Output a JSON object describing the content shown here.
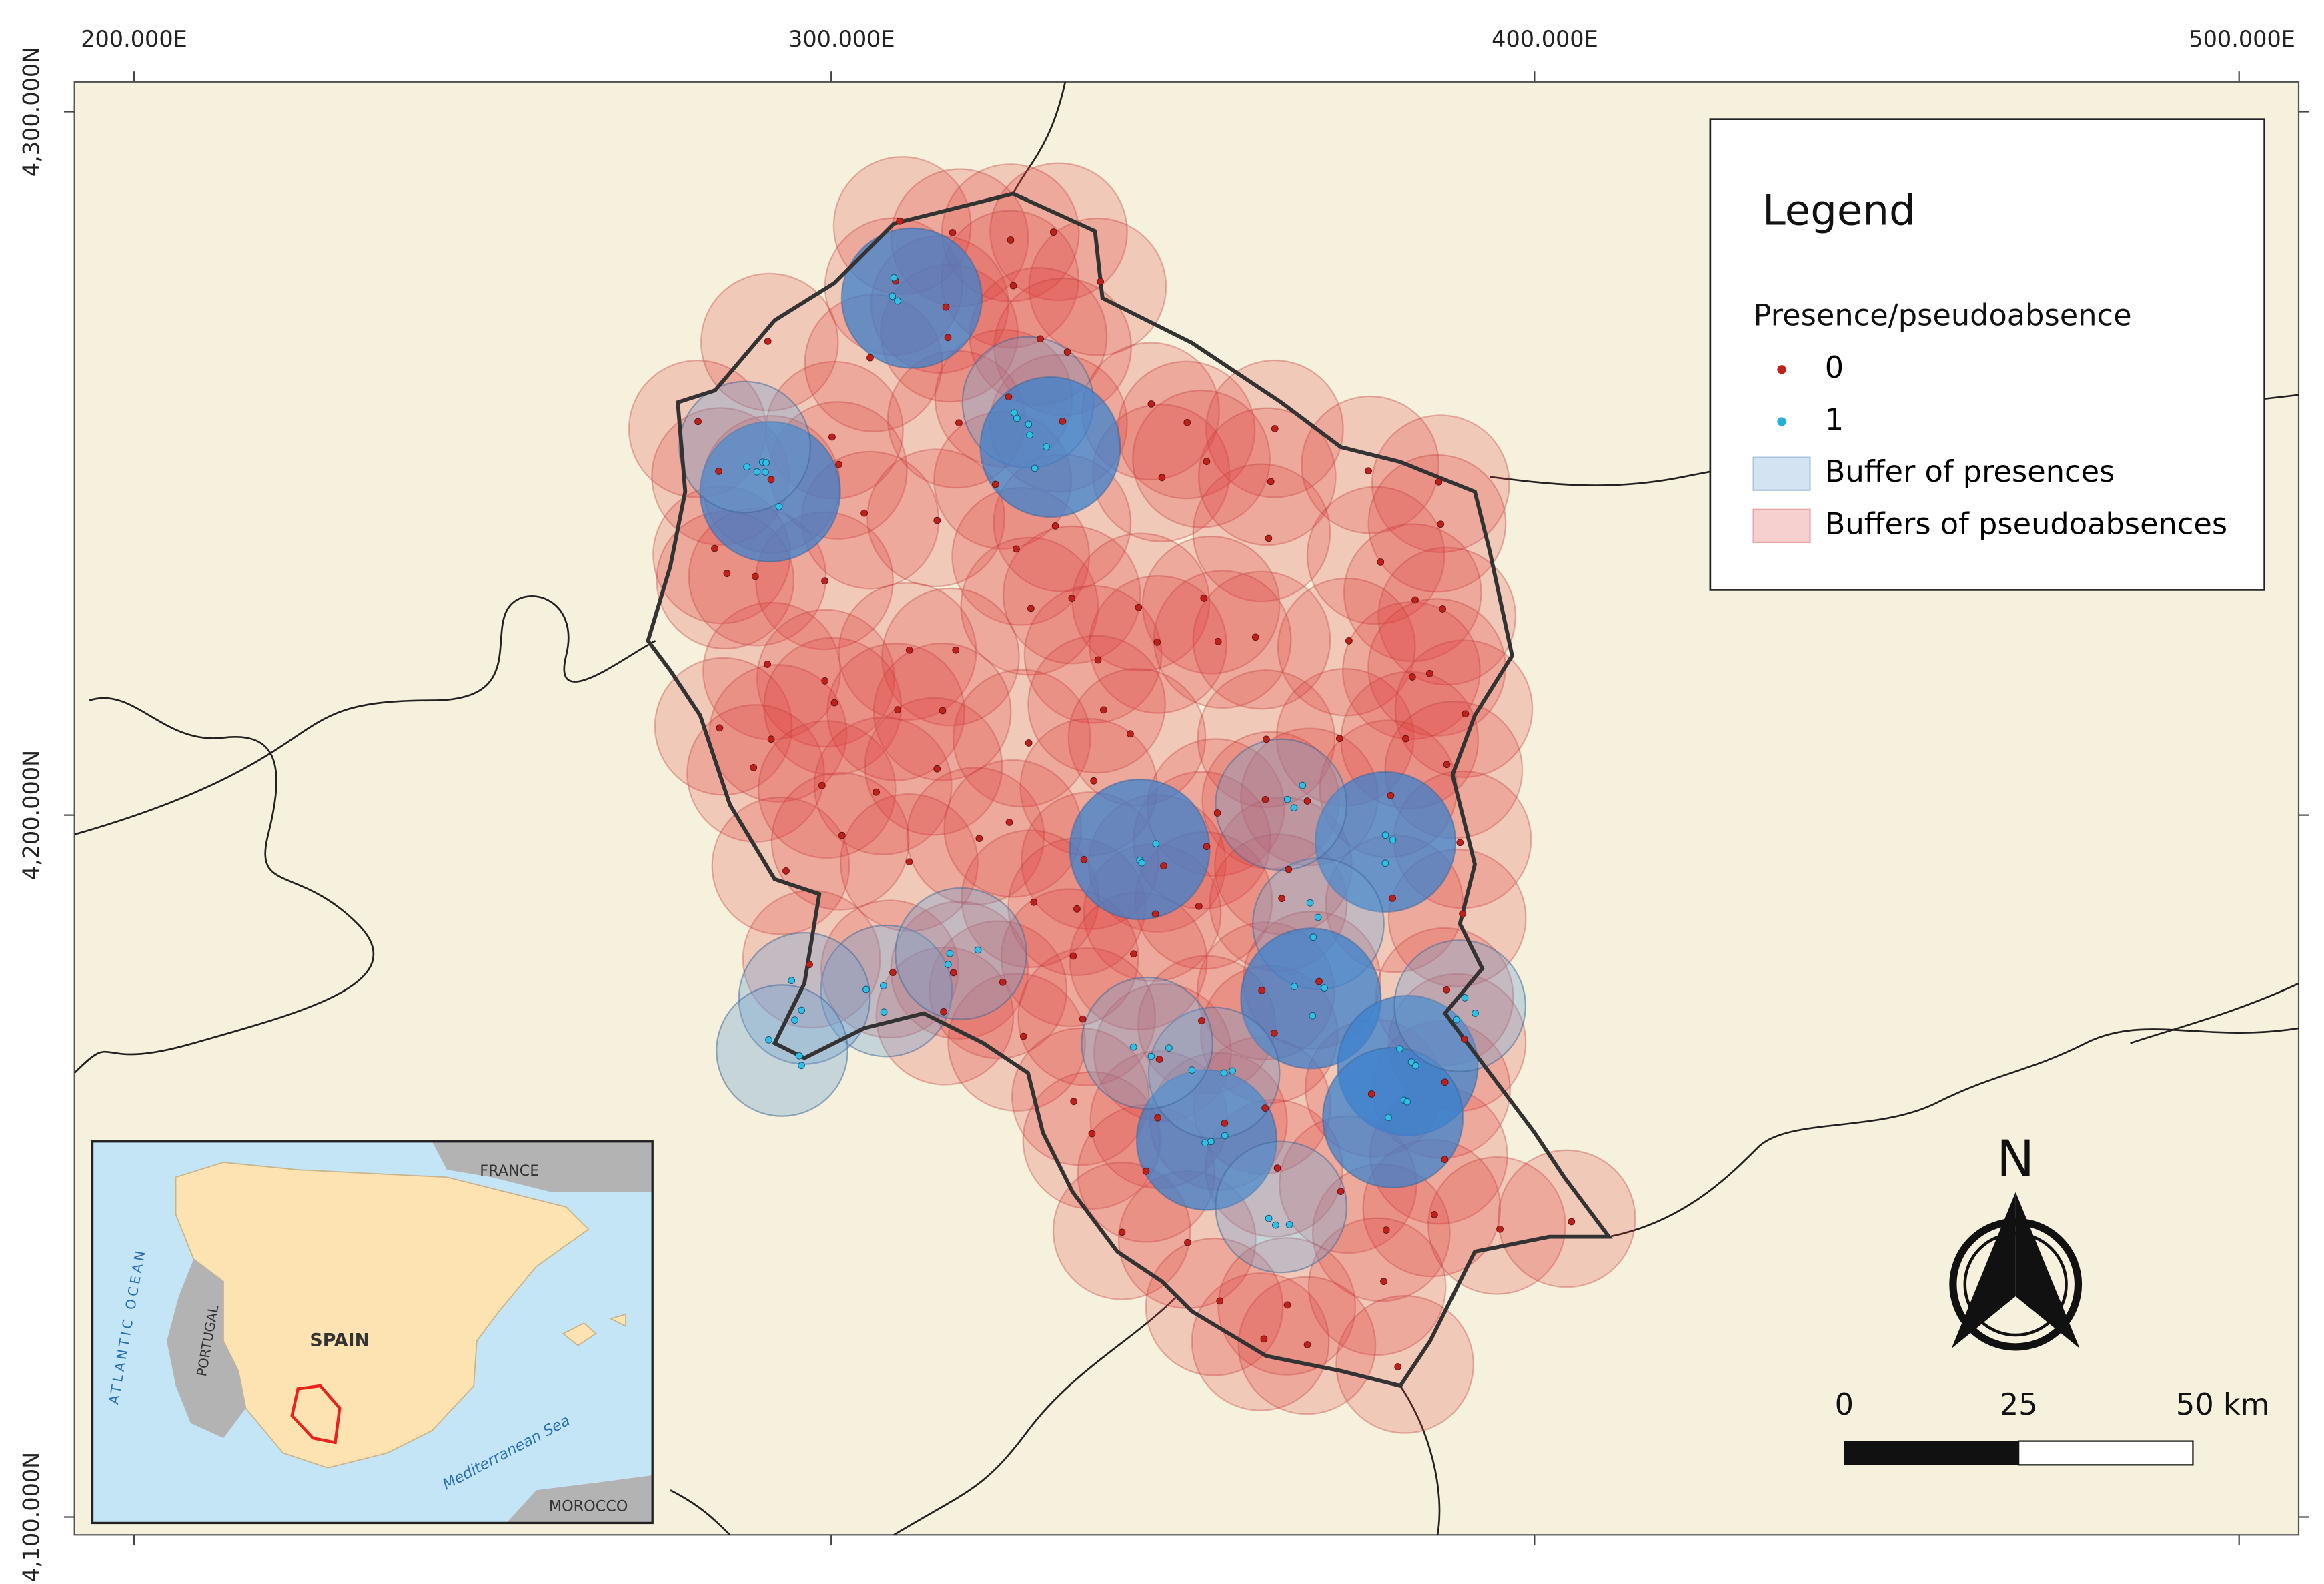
{
  "map": {
    "x_axis_labels": [
      "200.000E",
      "300.000E",
      "400.000E",
      "500.000E"
    ],
    "y_axis_labels": [
      "4,300.000N",
      "4,200.000N",
      "4,100.000N"
    ],
    "legend": {
      "title": "Legend",
      "group_title": "Presence/pseudoabsence",
      "items": [
        "0",
        "1",
        "Buffer of presences",
        "Buffers of pseudoabsences"
      ]
    },
    "north_label": "N",
    "scale_bar": {
      "labels": [
        "0",
        "25",
        "50 km"
      ]
    },
    "inset": {
      "labels": [
        "FRANCE",
        "ATLANTIC OCEAN",
        "PORTUGAL",
        "SPAIN",
        "Mediterranean Sea",
        "MOROCCO"
      ]
    }
  }
}
